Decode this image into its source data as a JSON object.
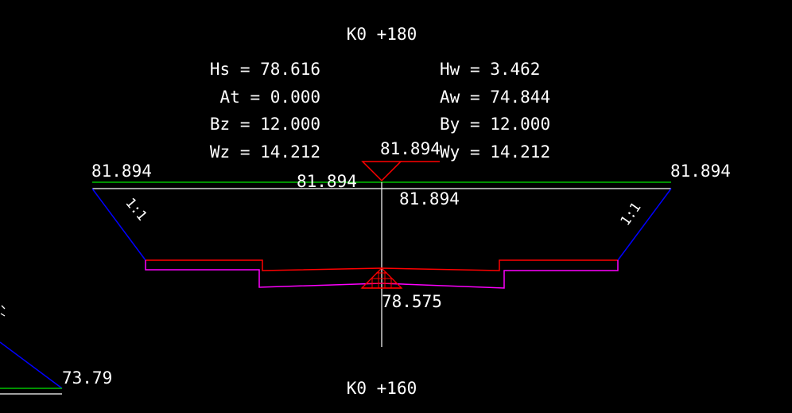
{
  "station_top": "K0 +180",
  "station_bottom": "K0 +160",
  "params_left": [
    {
      "key": "Hs",
      "value": "78.616"
    },
    {
      "key": "At",
      "value": "0.000"
    },
    {
      "key": "Bz",
      "value": "12.000"
    },
    {
      "key": "Wz",
      "value": "14.212"
    }
  ],
  "params_right": [
    {
      "key": "Hw",
      "value": "3.462"
    },
    {
      "key": "Aw",
      "value": "74.844"
    },
    {
      "key": "By",
      "value": "12.000"
    },
    {
      "key": "Wy",
      "value": "14.212"
    }
  ],
  "elevations": {
    "left_top": "81.894",
    "right_top": "81.894",
    "center_above_marker": "81.894",
    "center_mid": "81.894",
    "center_right": "81.894",
    "bottom": "78.575",
    "lower_left": "73.79"
  },
  "slopes": {
    "left": "1:1",
    "right": "1:1"
  },
  "colors": {
    "background": "#000000",
    "text": "#ffffff",
    "design_line": "#00c000",
    "ground_line": "#ffffff",
    "slope_line": "#0000ff",
    "channel_top": "#ff0000",
    "channel_bottom": "#ff00ff",
    "marker": "#ff0000"
  }
}
